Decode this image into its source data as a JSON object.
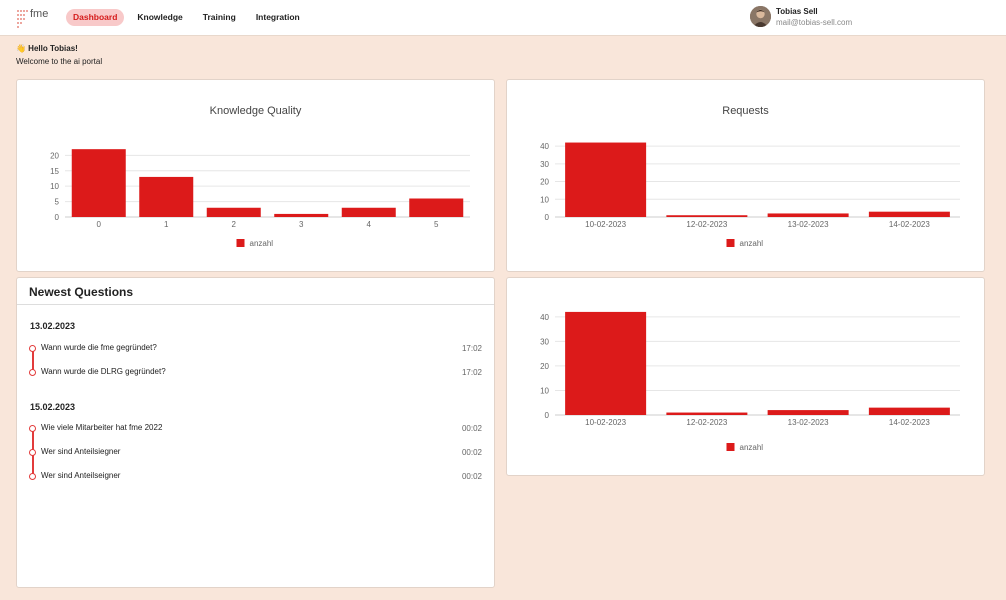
{
  "header": {
    "logo_text": "fme",
    "nav": [
      {
        "label": "Dashboard",
        "active": true
      },
      {
        "label": "Knowledge",
        "active": false
      },
      {
        "label": "Training",
        "active": false
      },
      {
        "label": "Integration",
        "active": false
      }
    ],
    "user": {
      "name": "Tobias Sell",
      "email": "mail@tobias-sell.com"
    }
  },
  "welcome": {
    "greeting": "👋 Hello Tobias!",
    "subtitle": "Welcome to the ai portal"
  },
  "colors": {
    "accent": "#dc1a1a",
    "background": "#f9e6da",
    "card": "#ffffff"
  },
  "charts": {
    "knowledge_quality": {
      "title": "Knowledge Quality"
    },
    "requests": {
      "title": "Requests"
    }
  },
  "chart_data": [
    {
      "type": "bar",
      "title": "Knowledge Quality",
      "categories": [
        "0",
        "1",
        "2",
        "3",
        "4",
        "5"
      ],
      "series": [
        {
          "name": "anzahl",
          "values": [
            22,
            13,
            3,
            1,
            3,
            6
          ]
        }
      ],
      "ylim": [
        0,
        24
      ],
      "yticks": [
        0,
        5,
        10,
        15,
        20
      ],
      "legend": "bottom",
      "grid": true
    },
    {
      "type": "bar",
      "title": "Requests",
      "categories": [
        "10-02-2023",
        "12-02-2023",
        "13-02-2023",
        "14-02-2023"
      ],
      "series": [
        {
          "name": "anzahl",
          "values": [
            42,
            1,
            2,
            3
          ]
        }
      ],
      "ylim": [
        0,
        44
      ],
      "yticks": [
        0,
        10,
        20,
        30,
        40
      ],
      "legend": "bottom",
      "grid": true
    },
    {
      "type": "bar",
      "title": "",
      "categories": [
        "10-02-2023",
        "12-02-2023",
        "13-02-2023",
        "14-02-2023"
      ],
      "series": [
        {
          "name": "anzahl",
          "values": [
            42,
            1,
            2,
            3
          ]
        }
      ],
      "ylim": [
        0,
        44
      ],
      "yticks": [
        0,
        10,
        20,
        30,
        40
      ],
      "legend": "bottom",
      "grid": true
    }
  ],
  "questions": {
    "title": "Newest Questions",
    "groups": [
      {
        "date": "13.02.2023",
        "items": [
          {
            "text": "Wann wurde die fme gegründet?",
            "time": "17:02"
          },
          {
            "text": "Wann wurde die DLRG gegründet?",
            "time": "17:02"
          }
        ]
      },
      {
        "date": "15.02.2023",
        "items": [
          {
            "text": "Wie viele Mitarbeiter hat fme 2022",
            "time": "00:02"
          },
          {
            "text": "Wer sind Anteilsiegner",
            "time": "00:02"
          },
          {
            "text": "Wer sind Anteilseigner",
            "time": "00:02"
          }
        ]
      }
    ]
  }
}
